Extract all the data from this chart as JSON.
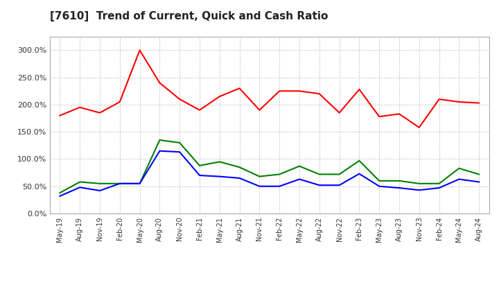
{
  "title": "[7610]  Trend of Current, Quick and Cash Ratio",
  "x_labels": [
    "May-19",
    "Aug-19",
    "Nov-19",
    "Feb-20",
    "May-20",
    "Aug-20",
    "Nov-20",
    "Feb-21",
    "May-21",
    "Aug-21",
    "Nov-21",
    "Feb-22",
    "May-22",
    "Aug-22",
    "Nov-22",
    "Feb-23",
    "May-23",
    "Aug-23",
    "Nov-23",
    "Feb-24",
    "May-24",
    "Aug-24"
  ],
  "current_ratio": [
    180,
    195,
    185,
    205,
    300,
    240,
    210,
    190,
    215,
    230,
    190,
    225,
    225,
    220,
    185,
    228,
    178,
    183,
    158,
    210,
    205,
    203
  ],
  "quick_ratio": [
    38,
    58,
    55,
    55,
    55,
    135,
    130,
    88,
    95,
    85,
    68,
    72,
    87,
    72,
    72,
    97,
    60,
    60,
    55,
    55,
    83,
    72
  ],
  "cash_ratio": [
    32,
    48,
    42,
    55,
    55,
    115,
    113,
    70,
    68,
    65,
    50,
    50,
    63,
    52,
    52,
    73,
    50,
    47,
    43,
    47,
    63,
    58
  ],
  "current_color": "#FF0000",
  "quick_color": "#008000",
  "cash_color": "#0000FF",
  "ylim": [
    0,
    325
  ],
  "yticks": [
    0,
    50,
    100,
    150,
    200,
    250,
    300
  ],
  "background_color": "#FFFFFF",
  "grid_color": "#AAAAAA",
  "title_fontsize": 11
}
